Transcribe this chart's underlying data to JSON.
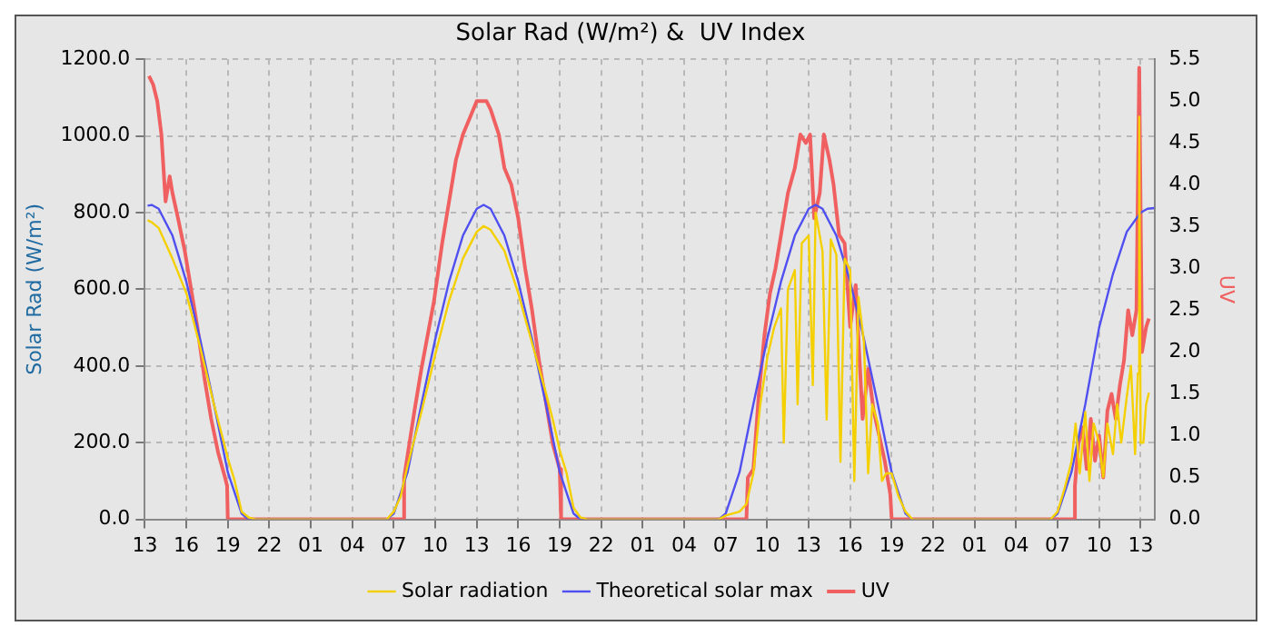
{
  "chart_data": {
    "type": "line",
    "title": "Solar Rad (W/m²) &  UV Index",
    "ylabel": "Solar Rad (W/m²)",
    "y2label": "UV",
    "xlim": [
      "--01-01T13:00",
      "--01-04T14:00"
    ],
    "xticks": [
      {
        "value": "--01-01T13:00",
        "label": "13"
      },
      {
        "value": "--01-01T16:00",
        "label": "16"
      },
      {
        "value": "--01-01T19:00",
        "label": "19"
      },
      {
        "value": "--01-01T22:00",
        "label": "22"
      },
      {
        "value": "--01-02T01:00",
        "label": "01"
      },
      {
        "value": "--01-02T04:00",
        "label": "04"
      },
      {
        "value": "--01-02T07:00",
        "label": "07"
      },
      {
        "value": "--01-02T10:00",
        "label": "10"
      },
      {
        "value": "--01-02T13:00",
        "label": "13"
      },
      {
        "value": "--01-02T16:00",
        "label": "16"
      },
      {
        "value": "--01-02T19:00",
        "label": "19"
      },
      {
        "value": "--01-02T22:00",
        "label": "22"
      },
      {
        "value": "--01-03T01:00",
        "label": "01"
      },
      {
        "value": "--01-03T04:00",
        "label": "04"
      },
      {
        "value": "--01-03T07:00",
        "label": "07"
      },
      {
        "value": "--01-03T10:00",
        "label": "10"
      },
      {
        "value": "--01-03T13:00",
        "label": "13"
      },
      {
        "value": "--01-03T16:00",
        "label": "16"
      },
      {
        "value": "--01-03T19:00",
        "label": "19"
      },
      {
        "value": "--01-03T22:00",
        "label": "22"
      },
      {
        "value": "--01-04T01:00",
        "label": "01"
      },
      {
        "value": "--01-04T04:00",
        "label": "04"
      },
      {
        "value": "--01-04T07:00",
        "label": "07"
      },
      {
        "value": "--01-04T10:00",
        "label": "10"
      },
      {
        "value": "--01-04T13:00",
        "label": "13"
      }
    ],
    "ylim": [
      0,
      1200
    ],
    "yticks": [
      {
        "value": 0,
        "label": "0.0"
      },
      {
        "value": 200,
        "label": "200.0"
      },
      {
        "value": 400,
        "label": "400.0"
      },
      {
        "value": 600,
        "label": "600.0"
      },
      {
        "value": 800,
        "label": "800.0"
      },
      {
        "value": 1000,
        "label": "1000.0"
      },
      {
        "value": 1200,
        "label": "1200.0"
      }
    ],
    "y2lim": [
      0,
      5.5
    ],
    "y2ticks": [
      {
        "value": 0,
        "label": "0.0"
      },
      {
        "value": 0.5,
        "label": "0.5"
      },
      {
        "value": 1,
        "label": "1.0"
      },
      {
        "value": 1.5,
        "label": "1.5"
      },
      {
        "value": 2,
        "label": "2.0"
      },
      {
        "value": 2.5,
        "label": "2.5"
      },
      {
        "value": 3,
        "label": "3.0"
      },
      {
        "value": 3.5,
        "label": "3.5"
      },
      {
        "value": 4,
        "label": "4.0"
      },
      {
        "value": 4.5,
        "label": "4.5"
      },
      {
        "value": 5,
        "label": "5.0"
      },
      {
        "value": 5.5,
        "label": "5.5"
      }
    ],
    "grid": true,
    "legend": "bottom",
    "marker": "none",
    "series": [
      {
        "name": "Solar radiation",
        "color": "#f5d000",
        "x": [
          "--01-01T13:12",
          "--01-01T13:30",
          "--01-01T14:00",
          "--01-01T14:30",
          "--01-01T15:00",
          "--01-01T16:00",
          "--01-01T17:00",
          "--01-01T18:00",
          "--01-01T18:30",
          "--01-01T19:00",
          "--01-01T19:30",
          "--01-01T20:00",
          "--01-01T20:30",
          "--01-01T21:00",
          "--01-02T06:30",
          "--01-02T07:00",
          "--01-02T07:30",
          "--01-02T08:00",
          "--01-02T08:30",
          "--01-02T09:00",
          "--01-02T10:00",
          "--01-02T11:00",
          "--01-02T12:00",
          "--01-02T13:00",
          "--01-02T13:30",
          "--01-02T14:00",
          "--01-02T15:00",
          "--01-02T16:00",
          "--01-02T17:00",
          "--01-02T18:00",
          "--01-02T18:30",
          "--01-02T19:00",
          "--01-02T19:30",
          "--01-02T20:00",
          "--01-02T20:30",
          "--01-02T21:00",
          "--01-03T06:30",
          "--01-03T07:00",
          "--01-03T08:00",
          "--01-03T08:30",
          "--01-03T09:00",
          "--01-03T09:30",
          "--01-03T10:00",
          "--01-03T10:30",
          "--01-03T11:00",
          "--01-03T11:12",
          "--01-03T11:30",
          "--01-03T12:00",
          "--01-03T12:12",
          "--01-03T12:30",
          "--01-03T13:00",
          "--01-03T13:18",
          "--01-03T13:30",
          "--01-03T13:42",
          "--01-03T14:00",
          "--01-03T14:18",
          "--01-03T14:36",
          "--01-03T15:00",
          "--01-03T15:18",
          "--01-03T15:36",
          "--01-03T16:00",
          "--01-03T16:18",
          "--01-03T16:36",
          "--01-03T17:00",
          "--01-03T17:18",
          "--01-03T17:36",
          "--01-03T18:00",
          "--01-03T18:18",
          "--01-03T18:36",
          "--01-03T19:00",
          "--01-03T19:30",
          "--01-03T20:00",
          "--01-03T20:30",
          "--01-04T06:30",
          "--01-04T07:00",
          "--01-04T07:30",
          "--01-04T08:00",
          "--01-04T08:18",
          "--01-04T08:36",
          "--01-04T09:00",
          "--01-04T09:18",
          "--01-04T09:36",
          "--01-04T10:00",
          "--01-04T10:18",
          "--01-04T10:36",
          "--01-04T11:00",
          "--01-04T11:18",
          "--01-04T11:36",
          "--01-04T12:00",
          "--01-04T12:18",
          "--01-04T12:36",
          "--01-04T12:48",
          "--01-04T12:54",
          "--01-04T13:00",
          "--01-04T13:12",
          "--01-04T13:24",
          "--01-04T13:36"
        ],
        "values": [
          780,
          775,
          760,
          720,
          680,
          590,
          450,
          300,
          230,
          160,
          100,
          20,
          5,
          0,
          0,
          20,
          60,
          140,
          210,
          280,
          430,
          570,
          680,
          750,
          765,
          755,
          700,
          590,
          460,
          330,
          260,
          180,
          120,
          30,
          5,
          0,
          0,
          10,
          20,
          40,
          120,
          300,
          420,
          500,
          550,
          200,
          600,
          650,
          300,
          720,
          740,
          350,
          800,
          760,
          700,
          260,
          730,
          690,
          150,
          680,
          650,
          100,
          580,
          460,
          120,
          300,
          250,
          100,
          120,
          120,
          60,
          20,
          0,
          0,
          20,
          80,
          150,
          250,
          120,
          280,
          100,
          250,
          200,
          110,
          250,
          170,
          300,
          200,
          320,
          400,
          170,
          380,
          1050,
          200,
          200,
          300,
          330
        ]
      },
      {
        "name": "Theoretical solar max",
        "color": "#5050f0",
        "x": [
          "--01-01T13:12",
          "--01-01T13:30",
          "--01-01T14:00",
          "--01-01T15:00",
          "--01-01T16:00",
          "--01-01T17:00",
          "--01-01T18:00",
          "--01-01T19:00",
          "--01-01T20:00",
          "--01-01T20:30",
          "--01-02T06:30",
          "--01-02T07:00",
          "--01-02T08:00",
          "--01-02T09:00",
          "--01-02T10:00",
          "--01-02T11:00",
          "--01-02T12:00",
          "--01-02T13:00",
          "--01-02T13:30",
          "--01-02T14:00",
          "--01-02T15:00",
          "--01-02T16:00",
          "--01-02T17:00",
          "--01-02T18:00",
          "--01-02T19:00",
          "--01-02T20:00",
          "--01-02T20:30",
          "--01-03T06:30",
          "--01-03T07:00",
          "--01-03T08:00",
          "--01-03T09:00",
          "--01-03T10:00",
          "--01-03T11:00",
          "--01-03T12:00",
          "--01-03T13:00",
          "--01-03T13:30",
          "--01-03T14:00",
          "--01-03T15:00",
          "--01-03T16:00",
          "--01-03T17:00",
          "--01-03T18:00",
          "--01-03T19:00",
          "--01-03T20:00",
          "--01-03T20:30",
          "--01-04T06:30",
          "--01-04T07:00",
          "--01-04T08:00",
          "--01-04T09:00",
          "--01-04T10:00",
          "--01-04T11:00",
          "--01-04T12:00",
          "--01-04T13:00",
          "--01-04T13:30",
          "--01-04T14:00"
        ],
        "values": [
          818,
          820,
          810,
          740,
          620,
          470,
          300,
          123,
          15,
          0,
          0,
          15,
          123,
          300,
          470,
          620,
          740,
          810,
          820,
          810,
          740,
          620,
          470,
          300,
          123,
          15,
          0,
          0,
          15,
          123,
          300,
          470,
          620,
          740,
          810,
          820,
          810,
          740,
          620,
          470,
          300,
          123,
          15,
          0,
          0,
          15,
          123,
          300,
          500,
          640,
          750,
          800,
          810,
          812
        ]
      },
      {
        "name": "UV",
        "color": "#f06060",
        "axis": "y2",
        "x": [
          "--01-01T13:18",
          "--01-01T13:36",
          "--01-01T13:54",
          "--01-01T14:12",
          "--01-01T14:30",
          "--01-01T14:48",
          "--01-01T15:00",
          "--01-01T15:24",
          "--01-01T15:54",
          "--01-01T16:18",
          "--01-01T16:48",
          "--01-01T17:18",
          "--01-01T17:48",
          "--01-01T18:18",
          "--01-01T18:48",
          "--01-01T18:57",
          "--01-01T19:00",
          "--01-02T07:42",
          "--01-02T07:45",
          "--01-02T08:30",
          "--01-02T09:00",
          "--01-02T09:54",
          "--01-02T10:30",
          "--01-02T11:00",
          "--01-02T11:30",
          "--01-02T12:00",
          "--01-02T12:30",
          "--01-02T13:00",
          "--01-02T13:42",
          "--01-02T14:00",
          "--01-02T14:36",
          "--01-02T15:00",
          "--01-02T15:30",
          "--01-02T16:00",
          "--01-02T16:30",
          "--01-02T17:00",
          "--01-02T17:30",
          "--01-02T18:00",
          "--01-02T18:30",
          "--01-02T19:00",
          "--01-02T19:06",
          "--01-03T08:30",
          "--01-03T08:36",
          "--01-03T09:00",
          "--01-03T09:24",
          "--01-03T09:48",
          "--01-03T10:12",
          "--01-03T10:36",
          "--01-03T11:00",
          "--01-03T11:30",
          "--01-03T12:00",
          "--01-03T12:24",
          "--01-03T12:48",
          "--01-03T13:06",
          "--01-03T13:24",
          "--01-03T13:48",
          "--01-03T14:06",
          "--01-03T14:30",
          "--01-03T14:48",
          "--01-03T15:12",
          "--01-03T15:36",
          "--01-03T16:00",
          "--01-03T16:24",
          "--01-03T16:54",
          "--01-03T17:18",
          "--01-03T17:42",
          "--01-03T18:06",
          "--01-03T18:30",
          "--01-03T18:54",
          "--01-03T19:00",
          "--01-04T08:12",
          "--01-04T08:15",
          "--01-04T08:30",
          "--01-04T08:48",
          "--01-04T09:06",
          "--01-04T09:24",
          "--01-04T09:42",
          "--01-04T10:00",
          "--01-04T10:18",
          "--01-04T10:36",
          "--01-04T10:54",
          "--01-04T11:12",
          "--01-04T11:30",
          "--01-04T11:48",
          "--01-04T12:06",
          "--01-04T12:24",
          "--01-04T12:42",
          "--01-04T12:54",
          "--01-04T13:06",
          "--01-04T13:24",
          "--01-04T13:36"
        ],
        "values": [
          5.3,
          5.2,
          5.0,
          4.6,
          3.8,
          4.1,
          3.9,
          3.6,
          3.2,
          2.8,
          2.3,
          1.7,
          1.2,
          0.8,
          0.5,
          0.4,
          0,
          0,
          0.5,
          1.3,
          1.8,
          2.6,
          3.3,
          3.8,
          4.3,
          4.6,
          4.8,
          5.0,
          5.0,
          4.9,
          4.6,
          4.2,
          4.0,
          3.6,
          3.0,
          2.5,
          1.9,
          1.4,
          0.9,
          0.6,
          0,
          0,
          0.5,
          0.6,
          1.5,
          2.2,
          2.7,
          3.0,
          3.4,
          3.9,
          4.2,
          4.6,
          4.5,
          4.6,
          3.6,
          3.9,
          4.6,
          4.3,
          4.0,
          3.4,
          3.3,
          2.3,
          2.8,
          1.2,
          1.8,
          1.3,
          1.0,
          0.7,
          0.3,
          0,
          0,
          0.4,
          0.9,
          1.1,
          0.6,
          1.2,
          0.7,
          1.0,
          0.5,
          1.3,
          1.5,
          1.2,
          1.6,
          1.9,
          2.5,
          2.2,
          2.5,
          5.4,
          2.0,
          2.3,
          2.4
        ]
      }
    ]
  }
}
